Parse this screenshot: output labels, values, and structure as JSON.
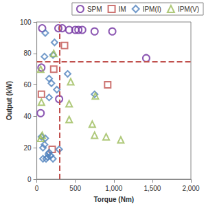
{
  "chart_data": {
    "type": "scatter",
    "x_label": "Torque (Nm)",
    "y_label": "Output (kW)",
    "xlim": [
      0,
      2000
    ],
    "xticks": [
      0,
      500,
      {
        "value": 1000,
        "label": "1,000"
      },
      {
        "value": 1500,
        "label": "1,500"
      },
      {
        "value": 2000,
        "label": "2,000"
      }
    ],
    "ylim": [
      0,
      100
    ],
    "yticks": [
      0,
      20,
      40,
      60,
      80,
      100
    ],
    "grid": false,
    "legend": "top-right",
    "vline": 300,
    "hline": 75,
    "series": [
      {
        "name": "SPM",
        "color": "#7030a0",
        "marker": "circle",
        "x": [
          70,
          280,
          330,
          420,
          500,
          540,
          590,
          750,
          980,
          1420,
          50,
          60,
          290
        ],
        "values": [
          96,
          96,
          96,
          95,
          95,
          95,
          95,
          94,
          94,
          77,
          42,
          71,
          51
        ]
      },
      {
        "name": "IM",
        "color": "#c0504d",
        "marker": "rect",
        "x": [
          60,
          220,
          200,
          360,
          920
        ],
        "values": [
          54,
          70,
          19,
          85,
          60
        ]
      },
      {
        "name": "IPM(I)",
        "color": "#4f81bd",
        "marker": "diamond",
        "x": [
          110,
          100,
          230,
          210,
          160,
          190,
          160,
          260,
          60,
          80,
          100,
          110,
          120,
          150,
          140,
          180,
          80,
          210,
          290,
          400,
          750,
          160
        ],
        "values": [
          93,
          78,
          87,
          79,
          64,
          61,
          52,
          57,
          27,
          20,
          22,
          26,
          13,
          16,
          14,
          15,
          13,
          13,
          19,
          67,
          54,
          17
        ]
      },
      {
        "name": "IPM(V)",
        "color": "#9bbb59",
        "marker": "triangle",
        "x": [
          50,
          60,
          70,
          50,
          220,
          440,
          420,
          420,
          760,
          720,
          750,
          900,
          1090
        ],
        "values": [
          70,
          49,
          28,
          26,
          80,
          62,
          48,
          38,
          53,
          35,
          28,
          27,
          25
        ]
      }
    ]
  }
}
